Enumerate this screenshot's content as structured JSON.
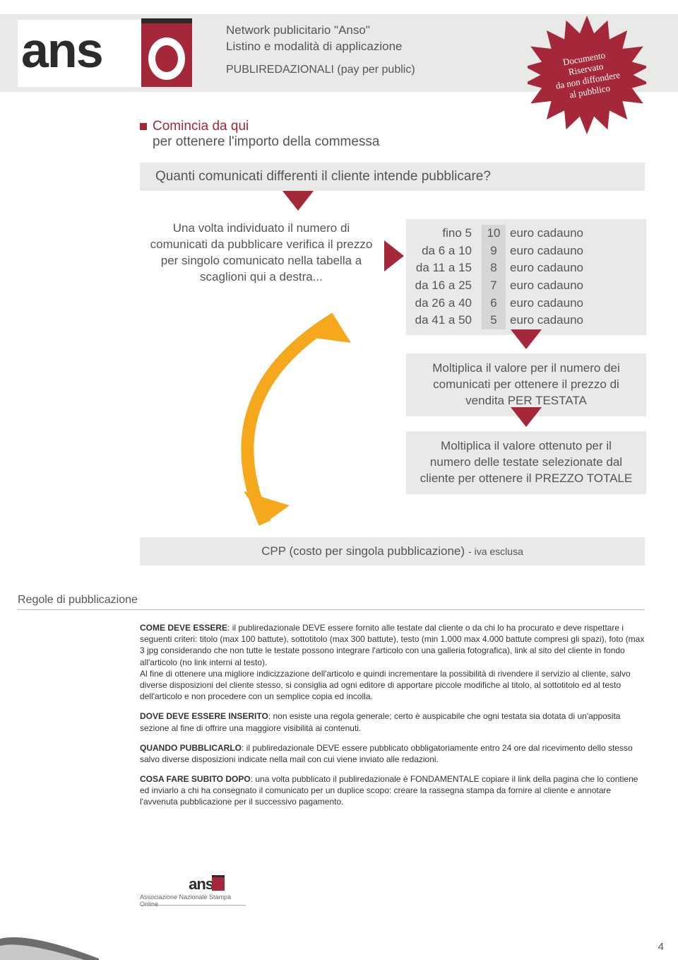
{
  "colors": {
    "accent": "#a5273a",
    "gray_band": "#e9e9e8",
    "gray_mid": "#d6d6d6",
    "text": "#4a4a4a",
    "orange": "#f5a81c",
    "dark": "#2b2b2b"
  },
  "header": {
    "logo_text": "ans",
    "title_line1": "Network  publicitario \"Anso\"",
    "title_line2": "Listino e modalità di applicazione",
    "subtitle": "PUBLIREDAZIONALI (pay per public)"
  },
  "starburst": {
    "line1": "Documento",
    "line2": "Riservato",
    "line3": "da non diffondere",
    "line4": "al pubblico"
  },
  "start": {
    "line1": "Comincia da qui",
    "line2": "per ottenere l'importo della commessa"
  },
  "question": "Quanti comunicati differenti il cliente intende pubblicare?",
  "info_left": "Una volta individuato il numero di comunicati da pubblicare verifica il prezzo per singolo comunicato nella tabella a scaglioni qui a destra...",
  "pricing": {
    "rows": [
      {
        "range": "fino 5",
        "price": "10",
        "unit": "euro cadauno"
      },
      {
        "range": "da 6 a 10",
        "price": "9",
        "unit": "euro cadauno"
      },
      {
        "range": "da 11 a 15",
        "price": "8",
        "unit": "euro cadauno"
      },
      {
        "range": "da 16 a 25",
        "price": "7",
        "unit": "euro cadauno"
      },
      {
        "range": "da 26 a 40",
        "price": "6",
        "unit": "euro cadauno"
      },
      {
        "range": "da 41 a 50",
        "price": "5",
        "unit": "euro cadauno"
      }
    ]
  },
  "step2": "Moltiplica il valore per il numero dei comunicati per ottenere il prezzo di vendita PER TESTATA",
  "step3": "Moltiplica il valore ottenuto per il numero delle testate selezionate dal cliente per ottenere il PREZZO TOTALE",
  "cpp": {
    "main": "CPP (costo per singola pubblicazione)",
    "suffix": "- iva esclusa"
  },
  "rules": {
    "title": "Regole di pubblicazione",
    "p1_label": "COME DEVE ESSERE",
    "p1_text": ": il publiredazionale DEVE essere fornito alle testate dal cliente o da chi lo ha procurato e deve rispettare i seguenti criteri: titolo (max 100 battute), sottotitolo (max 300 battute), testo (min 1.000 max 4.000 battute compresi gli spazi), foto (max 3 jpg considerando che non tutte le testate possono integrare l'articolo con una galleria fotografica), link al sito del cliente in fondo all'articolo (no link interni al testo).",
    "p1b_text": "Al fine di ottenere una migliore indicizzazione dell'articolo e quindi incrementare la possibilità di rivendere il servizio al cliente, salvo diverse disposizioni del cliente stesso, si consiglia ad ogni editore di apportare piccole modifiche al titolo, al sottotitolo ed al testo dell'articolo e non procedere con un semplice copia ed incolla.",
    "p2_label": "DOVE DEVE ESSERE INSERITO",
    "p2_text": ": non esiste una regola generale; certo è auspicabile che ogni testata sia dotata di un'apposita sezione al fine di offrire una maggiore visibilità ai contenuti.",
    "p3_label": "QUANDO PUBBLICARLO",
    "p3_text": ": il publiredazionale DEVE essere pubblicato obbligatoriamente entro 24 ore dal ricevimento dello stesso salvo diverse disposizioni indicate nella mail con cui viene inviato alle redazioni.",
    "p4_label": "COSA FARE SUBITO DOPO",
    "p4_text": ": una volta pubblicato il publiredazionale è FONDAMENTALE copiare il link della pagina che lo contiene ed inviarlo a chi ha consegnato il comunicato per un duplice scopo:  creare la rassegna stampa da fornire al cliente e annotare l'avvenuta pubblicazione per il successivo pagamento."
  },
  "footer": {
    "logo_text": "ans",
    "org": "Associazione Nazionale Stampa Online",
    "page_number": "4"
  }
}
